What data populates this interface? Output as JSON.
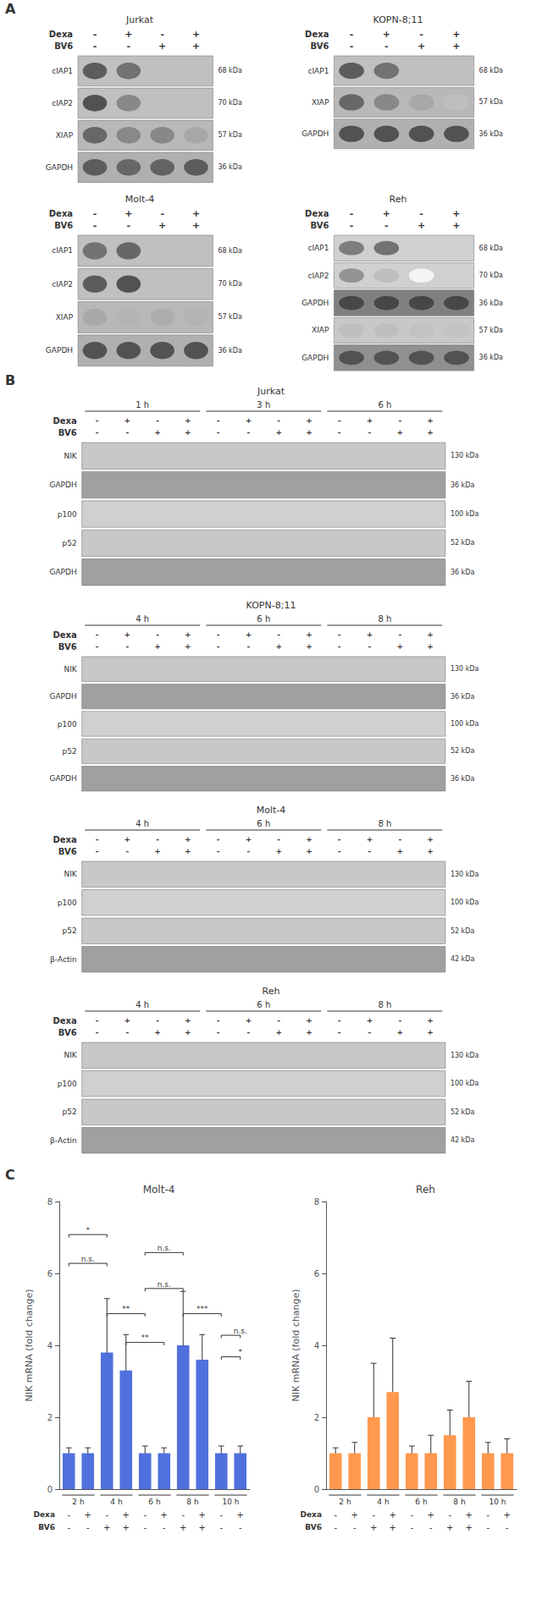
{
  "chart_data": [
    {
      "type": "blot",
      "panel_label": "A",
      "title": "Jurkat",
      "treatments": [
        {
          "name": "Dexa",
          "values": [
            "-",
            "+",
            "-",
            "+"
          ]
        },
        {
          "name": "BV6",
          "values": [
            "-",
            "-",
            "+",
            "+"
          ]
        }
      ],
      "bands": [
        {
          "label": "cIAP1",
          "kda": "68 kDa",
          "color": "#c0c0c0",
          "intensities": [
            0.75,
            0.65,
            0.0,
            0.0
          ]
        },
        {
          "label": "cIAP2",
          "kda": "70 kDa",
          "color": "#c0c0c0",
          "intensities": [
            0.8,
            0.55,
            0.0,
            0.0
          ]
        },
        {
          "label": "XIAP",
          "kda": "57 kDa",
          "color": "#b8b8b8",
          "intensities": [
            0.7,
            0.55,
            0.55,
            0.4
          ]
        },
        {
          "label": "GAPDH",
          "kda": "36 kDa",
          "color": "#b0b0b0",
          "intensities": [
            0.75,
            0.7,
            0.72,
            0.75
          ]
        }
      ]
    },
    {
      "type": "blot",
      "title": "KOPN-8;11",
      "treatments": [
        {
          "name": "Dexa",
          "values": [
            "-",
            "+",
            "-",
            "+"
          ]
        },
        {
          "name": "BV6",
          "values": [
            "-",
            "-",
            "+",
            "+"
          ]
        }
      ],
      "bands": [
        {
          "label": "cIAP1",
          "kda": "68 kDa",
          "color": "#c0c0c0",
          "intensities": [
            0.75,
            0.65,
            0.0,
            0.0
          ]
        },
        {
          "label": "XIAP",
          "kda": "57 kDa",
          "color": "#b8b8b8",
          "intensities": [
            0.7,
            0.55,
            0.4,
            0.3
          ]
        },
        {
          "label": "GAPDH",
          "kda": "36 kDa",
          "color": "#b0b0b0",
          "intensities": [
            0.8,
            0.8,
            0.8,
            0.8
          ]
        }
      ]
    },
    {
      "type": "blot",
      "title": "Molt-4",
      "treatments": [
        {
          "name": "Dexa",
          "values": [
            "-",
            "+",
            "-",
            "+"
          ]
        },
        {
          "name": "BV6",
          "values": [
            "-",
            "-",
            "+",
            "+"
          ]
        }
      ],
      "bands": [
        {
          "label": "cIAP1",
          "kda": "68 kDa",
          "color": "#c0c0c0",
          "intensities": [
            0.65,
            0.7,
            0.0,
            0.0
          ]
        },
        {
          "label": "cIAP2",
          "kda": "70 kDa",
          "color": "#c0c0c0",
          "intensities": [
            0.75,
            0.8,
            0.0,
            0.0
          ]
        },
        {
          "label": "XIAP",
          "kda": "57 kDa",
          "color": "#b8b8b8",
          "intensities": [
            0.4,
            0.35,
            0.38,
            0.35
          ]
        },
        {
          "label": "GAPDH",
          "kda": "36 kDa",
          "color": "#b0b0b0",
          "intensities": [
            0.8,
            0.8,
            0.8,
            0.8
          ]
        }
      ]
    },
    {
      "type": "blot",
      "title": "Reh",
      "treatments": [
        {
          "name": "Dexa",
          "values": [
            "-",
            "+",
            "-",
            "+"
          ]
        },
        {
          "name": "BV6",
          "values": [
            "-",
            "-",
            "+",
            "+"
          ]
        }
      ],
      "bands": [
        {
          "label": "cIAP1",
          "kda": "68 kDa",
          "color": "#d0d0d0",
          "intensities": [
            0.6,
            0.65,
            0.0,
            0.0
          ]
        },
        {
          "label": "cIAP2",
          "kda": "70 kDa",
          "color": "#d0d0d0",
          "intensities": [
            0.5,
            0.3,
            0.05,
            0.0
          ]
        },
        {
          "label": "GAPDH",
          "kda": "36 kDa",
          "color": "#808080",
          "intensities": [
            0.85,
            0.85,
            0.85,
            0.85
          ]
        },
        {
          "label": "XIAP",
          "kda": "57 kDa",
          "color": "#c8c8c8",
          "intensities": [
            0.3,
            0.3,
            0.28,
            0.28
          ]
        },
        {
          "label": "GAPDH",
          "kda": "36 kDa",
          "color": "#909090",
          "intensities": [
            0.8,
            0.8,
            0.8,
            0.8
          ]
        }
      ]
    },
    {
      "type": "blot",
      "panel_label": "B",
      "title": "Jurkat",
      "timepoints": [
        "1 h",
        "3 h",
        "6 h"
      ],
      "treatments": [
        {
          "name": "Dexa",
          "values": [
            "-",
            "+",
            "-",
            "+",
            "-",
            "+",
            "-",
            "+",
            "-",
            "+",
            "-",
            "+"
          ]
        },
        {
          "name": "BV6",
          "values": [
            "-",
            "-",
            "+",
            "+",
            "-",
            "-",
            "+",
            "+",
            "-",
            "-",
            "+",
            "+"
          ]
        }
      ],
      "bands": [
        {
          "label": "NIK",
          "kda": "130 kDa",
          "color": "#c8c8c8"
        },
        {
          "label": "GAPDH",
          "kda": "36 kDa",
          "color": "#a0a0a0"
        },
        {
          "label": "p100",
          "kda": "100 kDa",
          "color": "#d0d0d0"
        },
        {
          "label": "p52",
          "kda": "52 kDa",
          "color": "#c8c8c8"
        },
        {
          "label": "GAPDH",
          "kda": "36 kDa",
          "color": "#a0a0a0"
        }
      ]
    },
    {
      "type": "blot",
      "title": "KOPN-8;11",
      "timepoints": [
        "4 h",
        "6 h",
        "8 h"
      ],
      "treatments": [
        {
          "name": "Dexa",
          "values": [
            "-",
            "+",
            "-",
            "+",
            "-",
            "+",
            "-",
            "+",
            "-",
            "+",
            "-",
            "+"
          ]
        },
        {
          "name": "BV6",
          "values": [
            "-",
            "-",
            "+",
            "+",
            "-",
            "-",
            "+",
            "+",
            "-",
            "-",
            "+",
            "+"
          ]
        }
      ],
      "bands": [
        {
          "label": "NIK",
          "kda": "130 kDa",
          "color": "#c8c8c8"
        },
        {
          "label": "GAPDH",
          "kda": "36 kDa",
          "color": "#a0a0a0"
        },
        {
          "label": "p100",
          "kda": "100 kDa",
          "color": "#d0d0d0"
        },
        {
          "label": "p52",
          "kda": "52 kDa",
          "color": "#c8c8c8"
        },
        {
          "label": "GAPDH",
          "kda": "36 kDa",
          "color": "#a0a0a0"
        }
      ]
    },
    {
      "type": "blot",
      "title": "Molt-4",
      "timepoints": [
        "4 h",
        "6 h",
        "8 h"
      ],
      "treatments": [
        {
          "name": "Dexa",
          "values": [
            "-",
            "+",
            "-",
            "+",
            "-",
            "+",
            "-",
            "+",
            "-",
            "+",
            "-",
            "+"
          ]
        },
        {
          "name": "BV6",
          "values": [
            "-",
            "-",
            "+",
            "+",
            "-",
            "-",
            "+",
            "+",
            "-",
            "-",
            "+",
            "+"
          ]
        }
      ],
      "bands": [
        {
          "label": "NIK",
          "kda": "130 kDa",
          "color": "#c8c8c8"
        },
        {
          "label": "p100",
          "kda": "100 kDa",
          "color": "#d0d0d0"
        },
        {
          "label": "p52",
          "kda": "52 kDa",
          "color": "#c8c8c8"
        },
        {
          "label": "β-Actin",
          "kda": "42 kDa",
          "color": "#a0a0a0"
        }
      ]
    },
    {
      "type": "blot",
      "title": "Reh",
      "timepoints": [
        "4 h",
        "6 h",
        "8 h"
      ],
      "treatments": [
        {
          "name": "Dexa",
          "values": [
            "-",
            "+",
            "-",
            "+",
            "-",
            "+",
            "-",
            "+",
            "-",
            "+",
            "-",
            "+"
          ]
        },
        {
          "name": "BV6",
          "values": [
            "-",
            "-",
            "+",
            "+",
            "-",
            "-",
            "+",
            "+",
            "-",
            "-",
            "+",
            "+"
          ]
        }
      ],
      "bands": [
        {
          "label": "NIK",
          "kda": "130 kDa",
          "color": "#c8c8c8"
        },
        {
          "label": "p100",
          "kda": "100 kDa",
          "color": "#d0d0d0"
        },
        {
          "label": "p52",
          "kda": "52 kDa",
          "color": "#c8c8c8"
        },
        {
          "label": "β-Actin",
          "kda": "42 kDa",
          "color": "#a0a0a0"
        }
      ]
    },
    {
      "type": "bar",
      "panel_label": "C",
      "title": "Molt-4",
      "ylabel": "NIK mRNA (fold change)",
      "timepoints": [
        "2 h",
        "4 h",
        "6 h",
        "8 h",
        "10 h"
      ],
      "treatments": [
        {
          "name": "Dexa",
          "values": [
            "-",
            "+",
            "-",
            "+",
            "-",
            "+",
            "-",
            "+",
            "-",
            "+"
          ]
        },
        {
          "name": "BV6",
          "values": [
            "-",
            "-",
            "+",
            "+",
            "-",
            "-",
            "+",
            "+",
            "-",
            "-"
          ]
        }
      ],
      "values": [
        1.0,
        1.0,
        3.8,
        3.3,
        1.0,
        1.0,
        4.0,
        3.6,
        1.0,
        1.0
      ],
      "errors": [
        0.15,
        0.15,
        1.5,
        1.0,
        0.2,
        0.15,
        1.5,
        0.7,
        0.2,
        0.2
      ],
      "ylim": [
        0,
        8
      ],
      "yticks": [
        0,
        2,
        4,
        6,
        8
      ],
      "grid": false,
      "annotations": [
        {
          "x1": 0,
          "x2": 2,
          "y": 6.2,
          "label": "n.s."
        },
        {
          "x1": 0,
          "x2": 2,
          "y": 7.0,
          "label": "*"
        },
        {
          "x1": 2,
          "x2": 4,
          "y": 4.8,
          "label": "**"
        },
        {
          "x1": 3,
          "x2": 5,
          "y": 4.0,
          "label": "**"
        },
        {
          "x1": 4,
          "x2": 6,
          "y": 6.5,
          "label": "n.s."
        },
        {
          "x1": 4,
          "x2": 6,
          "y": 5.5,
          "label": "n.s."
        },
        {
          "x1": 6,
          "x2": 8,
          "y": 4.8,
          "label": "***"
        },
        {
          "x1": 8,
          "x2": 9,
          "y": 4.2,
          "label": "n.s."
        },
        {
          "x1": 8,
          "x2": 9,
          "y": 3.6,
          "label": "*"
        }
      ]
    },
    {
      "type": "bar",
      "title": "Reh",
      "ylabel": "NIK mRNA (fold change)",
      "timepoints": [
        "2 h",
        "4 h",
        "6 h",
        "8 h",
        "10 h"
      ],
      "treatments": [
        {
          "name": "Dexa",
          "values": [
            "-",
            "+",
            "-",
            "+",
            "-",
            "+",
            "-",
            "+",
            "-",
            "+"
          ]
        },
        {
          "name": "BV6",
          "values": [
            "-",
            "-",
            "+",
            "+",
            "-",
            "-",
            "+",
            "+",
            "-",
            "-"
          ]
        }
      ],
      "values": [
        1.0,
        1.0,
        2.0,
        2.7,
        1.0,
        1.0,
        1.5,
        2.0,
        1.0,
        1.0
      ],
      "errors": [
        0.15,
        0.3,
        1.5,
        1.5,
        0.2,
        0.5,
        0.7,
        1.0,
        0.3,
        0.4
      ],
      "ylim": [
        0,
        8
      ],
      "yticks": [
        0,
        2,
        4,
        6,
        8
      ],
      "grid": false
    }
  ]
}
